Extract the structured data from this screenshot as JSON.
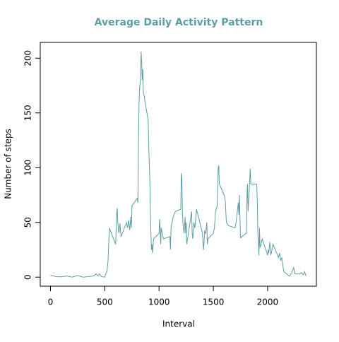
{
  "chart_data": {
    "type": "line",
    "title": "Average Daily Activity Pattern",
    "x_label": "Interval",
    "y_label": "Number of steps",
    "color": "#5f9ea0",
    "xlim": [
      -94.2,
      2449.2
    ],
    "ylim": [
      -8.25,
      214.4
    ],
    "xticks": [
      0,
      500,
      1000,
      1500,
      2000
    ],
    "yticks": [
      0,
      50,
      100,
      150,
      200
    ],
    "x": [
      0,
      50,
      100,
      150,
      200,
      250,
      300,
      350,
      400,
      420,
      440,
      450,
      470,
      500,
      505,
      510,
      520,
      530,
      540,
      545,
      550,
      600,
      610,
      615,
      620,
      630,
      640,
      650,
      700,
      710,
      720,
      730,
      740,
      745,
      750,
      800,
      805,
      810,
      815,
      820,
      830,
      835,
      840,
      845,
      850,
      855,
      900,
      905,
      910,
      915,
      920,
      925,
      930,
      935,
      940,
      950,
      1000,
      1005,
      1010,
      1015,
      1020,
      1030,
      1040,
      1100,
      1105,
      1110,
      1130,
      1150,
      1200,
      1205,
      1210,
      1215,
      1220,
      1230,
      1240,
      1245,
      1250,
      1255,
      1300,
      1305,
      1310,
      1320,
      1330,
      1345,
      1350,
      1400,
      1405,
      1410,
      1420,
      1430,
      1440,
      1445,
      1450,
      1500,
      1510,
      1520,
      1535,
      1545,
      1550,
      1555,
      1600,
      1610,
      1615,
      1620,
      1640,
      1700,
      1710,
      1715,
      1730,
      1735,
      1740,
      1745,
      1750,
      1800,
      1805,
      1810,
      1815,
      1820,
      1825,
      1830,
      1835,
      1840,
      1845,
      1900,
      1905,
      1910,
      1915,
      1920,
      1925,
      1930,
      1940,
      1950,
      2000,
      2005,
      2010,
      2020,
      2030,
      2040,
      2050,
      2100,
      2110,
      2120,
      2130,
      2140,
      2150,
      2200,
      2210,
      2230,
      2240,
      2250,
      2300,
      2310,
      2330,
      2340,
      2355
    ],
    "values": [
      1.7,
      0.5,
      0.3,
      1,
      0,
      1.5,
      0,
      0.5,
      1.2,
      3,
      1,
      3,
      0.5,
      0,
      2,
      3,
      5,
      15,
      40,
      45,
      43,
      30,
      58,
      63,
      50,
      40,
      49,
      37,
      50,
      45,
      52,
      43,
      55,
      45,
      65,
      72,
      68,
      120,
      155,
      170,
      185,
      206,
      195,
      180,
      190,
      170,
      143,
      120,
      105,
      90,
      60,
      40,
      25,
      30,
      22,
      35,
      40,
      53,
      45,
      30,
      45,
      40,
      35,
      37,
      25,
      45,
      55,
      60,
      62,
      95,
      90,
      60,
      50,
      40,
      55,
      40,
      50,
      30,
      60,
      40,
      35,
      50,
      45,
      62,
      60,
      40,
      32,
      25,
      42,
      40,
      50,
      30,
      35,
      40,
      45,
      60,
      65,
      100,
      102,
      85,
      75,
      70,
      60,
      50,
      47,
      45,
      50,
      55,
      68,
      57,
      75,
      55,
      36,
      40,
      40,
      75,
      85,
      60,
      70,
      78,
      90,
      99,
      85,
      85,
      70,
      40,
      32,
      20,
      45,
      27,
      30,
      35,
      20,
      25,
      22,
      32,
      20,
      25,
      30,
      18,
      22,
      15,
      18,
      10,
      5,
      1,
      2,
      6,
      9,
      3,
      3,
      4,
      2,
      5,
      1
    ]
  }
}
